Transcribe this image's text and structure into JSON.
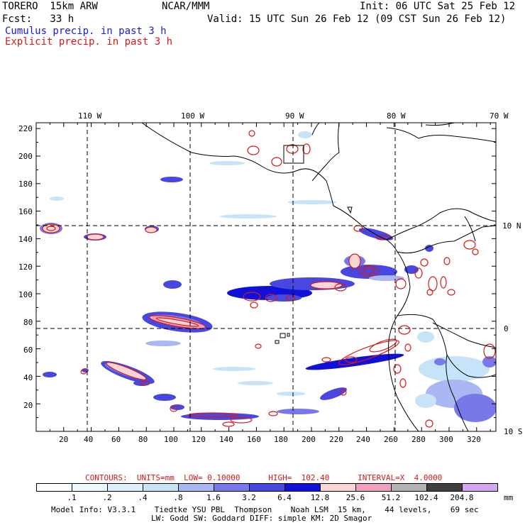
{
  "header": {
    "model": "TORERO  15km ARW",
    "center": "NCAR/MMM",
    "init": "Init: 06 UTC Sat 25 Feb 12",
    "fcst": "Fcst:   33 h",
    "valid": "Valid: 15 UTC Sun 26 Feb 12 (09 CST Sun 26 Feb 12)",
    "cumulus_label": "Cumulus precip. in past 3 h",
    "explicit_label": "Explicit precip. in past 3 h"
  },
  "colors": {
    "cumulus": "#1a1ad6",
    "explicit": "#d81818",
    "land": "#000000"
  },
  "map": {
    "lon_labels": [
      "110 W",
      "100 W",
      "90 W",
      "80 W",
      "70 W"
    ],
    "lat_labels": [
      "10 N",
      "0",
      "10 S"
    ],
    "y_ticks": [
      "220",
      "200",
      "180",
      "160",
      "140",
      "120",
      "100",
      "80",
      "60",
      "40",
      "20"
    ],
    "x_ticks": [
      "20",
      "40",
      "60",
      "80",
      "100",
      "120",
      "140",
      "160",
      "180",
      "200",
      "220",
      "240",
      "260",
      "280",
      "300",
      "320"
    ]
  },
  "contours": {
    "text": "CONTOURS:  UNITS=mm  LOW= 0.10000      HIGH=  102.40      INTERVAL=X  4.0000"
  },
  "legend": {
    "colors": [
      "#ffffff",
      "#eef8ff",
      "#dceffa",
      "#c6e3f8",
      "#a9b8f2",
      "#7878ea",
      "#4848e0",
      "#1010d8",
      "#f8d6d6",
      "#f0a0c0",
      "#b4b4b4",
      "#404040",
      "#d2a8f2"
    ],
    "labels": [
      ".1",
      ".2",
      ".4",
      ".8",
      "1.6",
      "3.2",
      "6.4",
      "12.8",
      "25.6",
      "51.2",
      "102.4",
      "204.8"
    ],
    "unit": "mm"
  },
  "footer": {
    "line1": "Model Info: V3.3.1    Tiedtke YSU PBL  Thompson    Noah LSM  15 km,    44 levels,    69 sec",
    "line2": "LW: Godd SW: Goddard DIFF: simple KM: 2D Smagor"
  }
}
